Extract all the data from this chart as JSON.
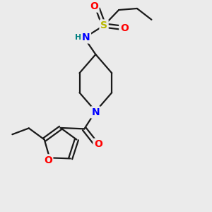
{
  "bg_color": "#ebebeb",
  "bond_color": "#1a1a1a",
  "bond_width": 1.6,
  "atom_colors": {
    "N": "#0000ff",
    "O": "#ff0000",
    "S": "#b8b800",
    "H": "#008080",
    "C": "#1a1a1a"
  },
  "font_size": 9,
  "fig_size": [
    3.0,
    3.0
  ],
  "dpi": 100
}
